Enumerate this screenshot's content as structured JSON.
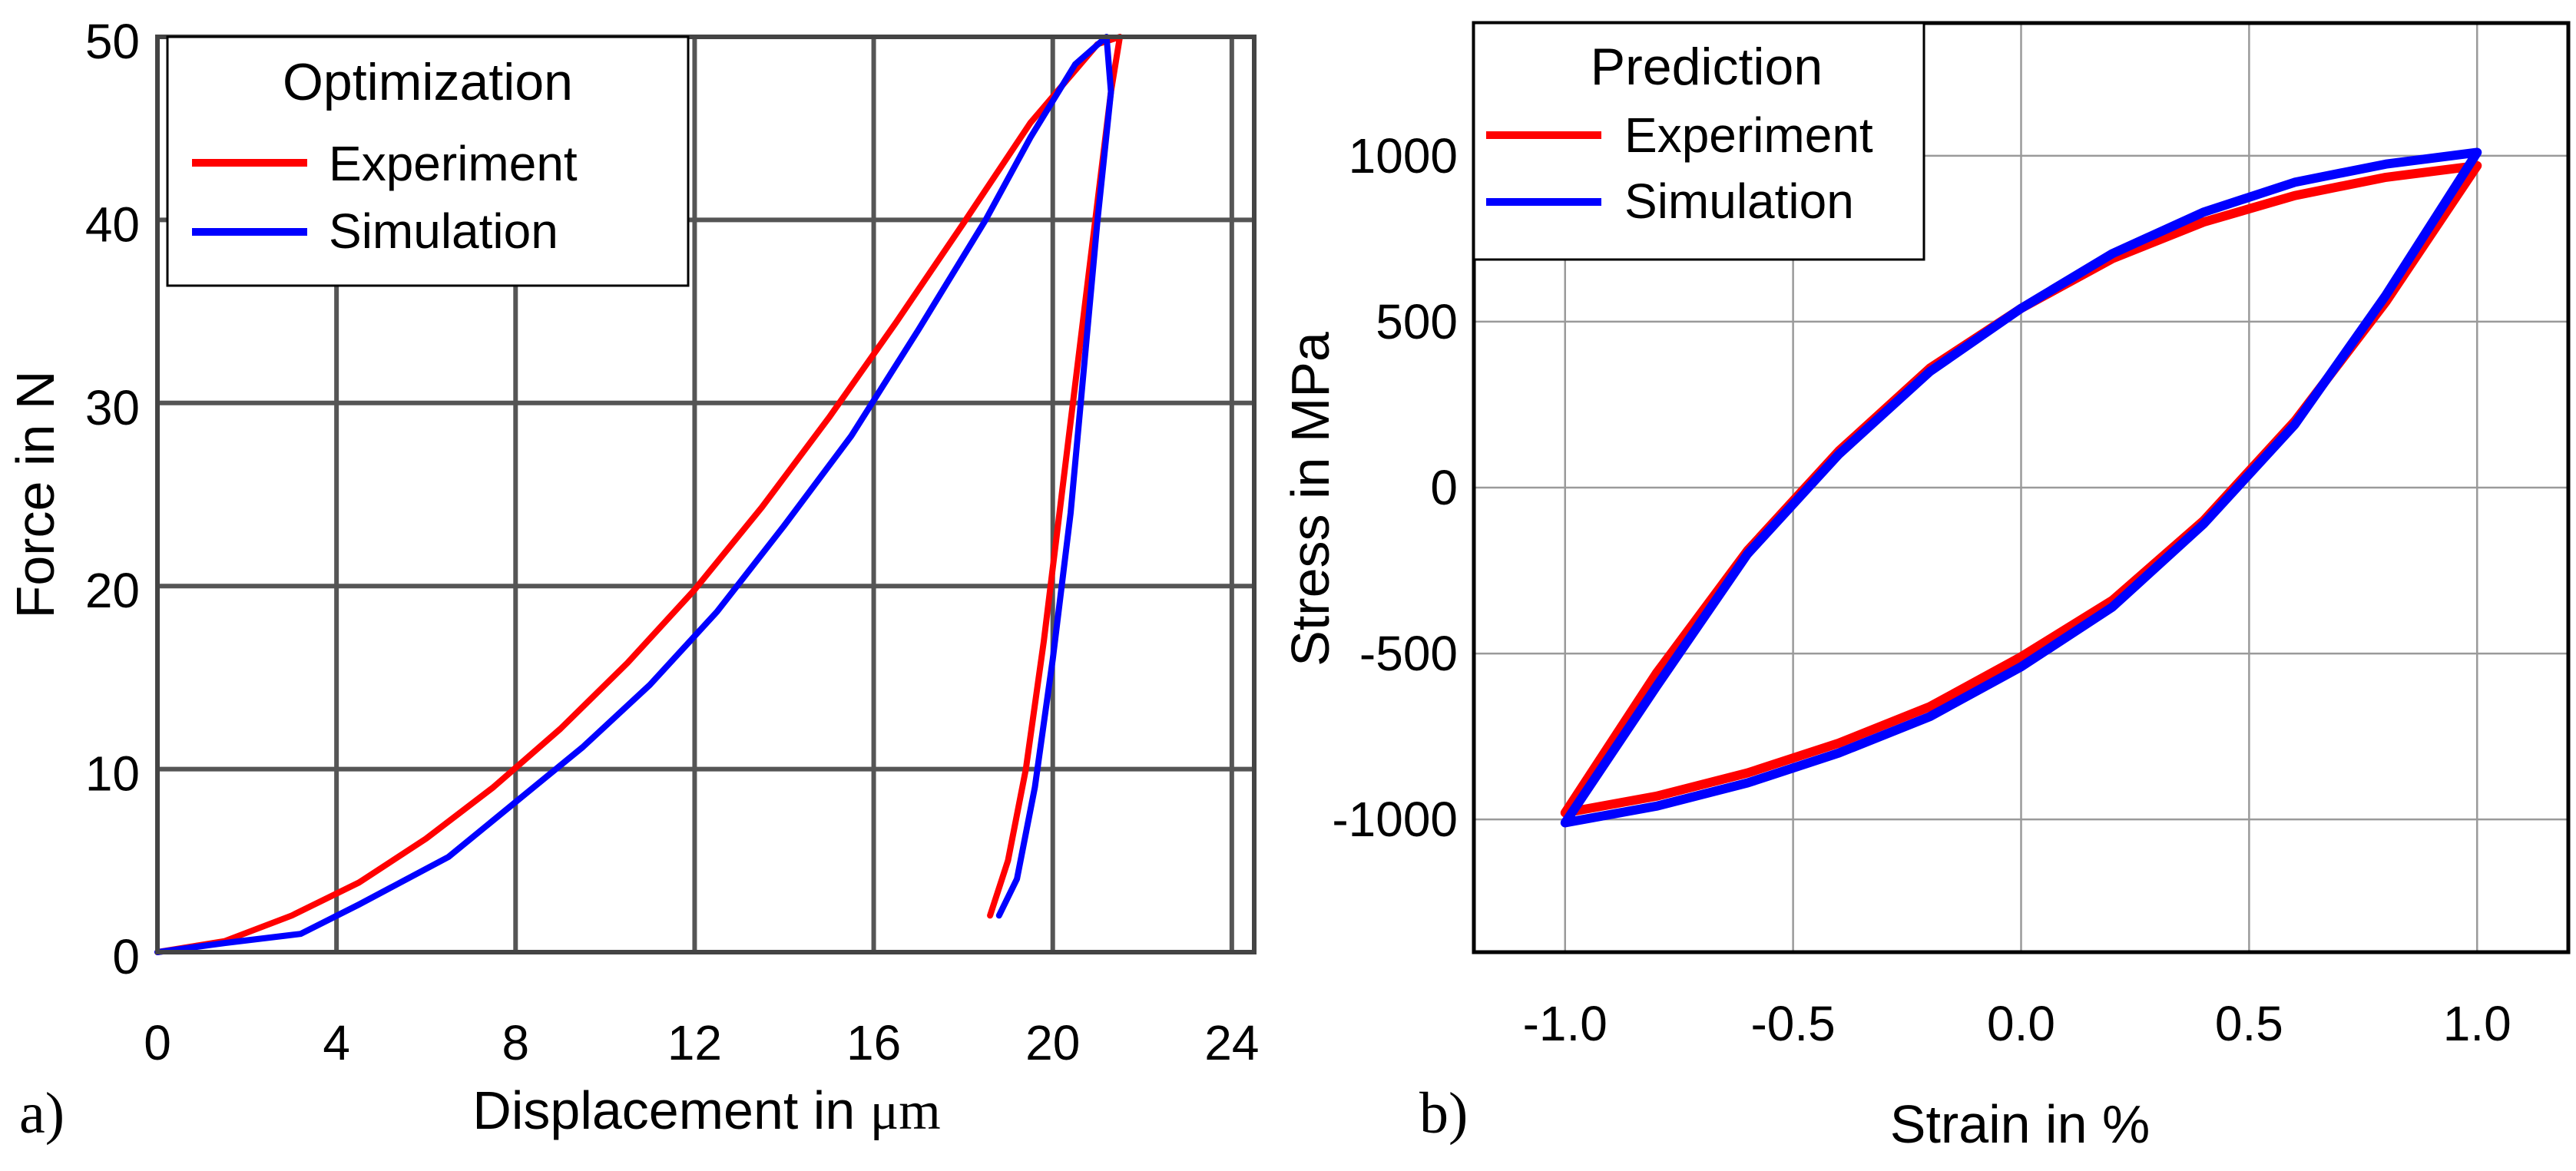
{
  "chart_data": [
    {
      "type": "line",
      "panel_label": "a)",
      "xlabel_prefix": "Displacement in ",
      "xlabel_unit": "μm",
      "ylabel": "Force in N",
      "xlim": [
        0,
        24.5
      ],
      "ylim": [
        0,
        50
      ],
      "xticks": [
        "0",
        "4",
        "8",
        "12",
        "16",
        "20",
        "24"
      ],
      "yticks": [
        "0",
        "10",
        "20",
        "30",
        "40",
        "50"
      ],
      "legend_title": "Optimization",
      "legend_location": "top-left",
      "series": [
        {
          "name": "Experiment",
          "color": "#ff0000",
          "x": [
            0,
            1.5,
            3,
            4.5,
            6,
            7.5,
            9,
            10.5,
            12,
            13.5,
            15,
            16.5,
            18,
            19.5,
            21,
            21.5,
            21.3,
            21.0,
            20.6,
            20.2,
            19.8,
            19.4,
            19.0,
            18.6
          ],
          "y": [
            0,
            0.6,
            2.0,
            3.8,
            6.2,
            9.0,
            12.2,
            15.8,
            19.8,
            24.3,
            29.2,
            34.4,
            39.8,
            45.3,
            49.6,
            50,
            47,
            41,
            33,
            25,
            17,
            10,
            5,
            2
          ]
        },
        {
          "name": "Simulation",
          "color": "#0000ff",
          "x": [
            0,
            1.5,
            3.2,
            4.5,
            6.5,
            8,
            9.5,
            11,
            12.5,
            14,
            15.5,
            17,
            18.5,
            19.5,
            20.5,
            21.2,
            21.3,
            21.0,
            20.7,
            20.4,
            20.0,
            19.6,
            19.2,
            18.8
          ],
          "y": [
            0,
            0.5,
            1.0,
            2.6,
            5.2,
            8.2,
            11.2,
            14.6,
            18.6,
            23.3,
            28.2,
            34.0,
            40.0,
            44.5,
            48.5,
            50,
            47,
            40,
            32,
            24,
            16,
            9,
            4,
            2
          ]
        }
      ]
    },
    {
      "type": "line",
      "panel_label": "b)",
      "xlabel": "Strain in %",
      "ylabel": "Stress in MPa",
      "xlim": [
        -1.2,
        1.2
      ],
      "ylim": [
        -1400,
        1400
      ],
      "xticks": [
        "-1.0",
        "-0.5",
        "0.0",
        "0.5",
        "1.0"
      ],
      "yticks": [
        "-1000",
        "-500",
        "0",
        "500",
        "1000"
      ],
      "legend_title": "Prediction",
      "legend_location": "top-left",
      "series": [
        {
          "name": "Experiment",
          "color": "#ff0000",
          "x": [
            -1.0,
            -0.8,
            -0.6,
            -0.4,
            -0.2,
            0.0,
            0.2,
            0.4,
            0.6,
            0.8,
            1.0,
            0.8,
            0.6,
            0.4,
            0.2,
            0.0,
            -0.2,
            -0.4,
            -0.6,
            -0.8,
            -1.0
          ],
          "y": [
            -980,
            -560,
            -190,
            110,
            360,
            540,
            690,
            800,
            880,
            935,
            970,
            560,
            200,
            -100,
            -340,
            -510,
            -660,
            -770,
            -860,
            -930,
            -980
          ]
        },
        {
          "name": "Simulation",
          "color": "#0000ff",
          "x": [
            -1.0,
            -0.8,
            -0.6,
            -0.4,
            -0.2,
            0.0,
            0.2,
            0.4,
            0.6,
            0.8,
            1.0,
            0.8,
            0.6,
            0.4,
            0.2,
            0.0,
            -0.2,
            -0.4,
            -0.6,
            -0.8,
            -1.0
          ],
          "y": [
            -1010,
            -600,
            -200,
            100,
            350,
            540,
            705,
            830,
            920,
            975,
            1010,
            580,
            190,
            -110,
            -360,
            -540,
            -690,
            -800,
            -890,
            -960,
            -1010
          ]
        }
      ]
    }
  ]
}
